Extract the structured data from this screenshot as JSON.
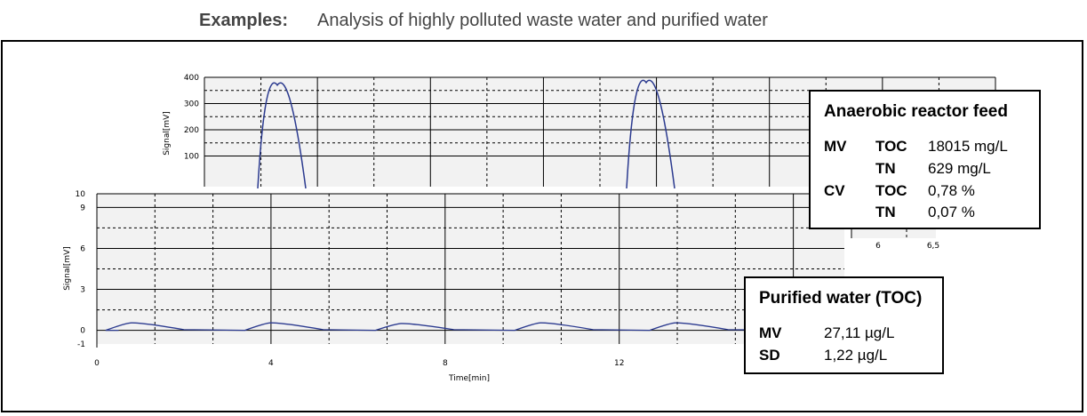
{
  "header": {
    "label": "Examples:",
    "text": "Analysis of highly polluted waste water and purified water"
  },
  "chart_data": [
    {
      "type": "line",
      "ylabel": "Signal[mV]",
      "yticks": [
        100,
        200,
        300,
        400
      ],
      "xticks_visible": [
        "6",
        "6,5"
      ],
      "line_color": "#2b3a8f",
      "series": [
        {
          "peaks": [
            {
              "x_rel": 0.4,
              "height": 370
            },
            {
              "x_rel": 0.62,
              "height": 380
            }
          ]
        }
      ]
    },
    {
      "type": "line",
      "xlabel": "Time[min]",
      "ylabel": "Signal[mV]",
      "xlim": [
        0,
        17
      ],
      "ylim": [
        -1,
        10
      ],
      "xticks": [
        0,
        4,
        8,
        12
      ],
      "yticks": [
        -1,
        0,
        3,
        6,
        9,
        10
      ],
      "line_color": "#2b3a8f",
      "series": [
        {
          "peaks": [
            {
              "x": 0.8,
              "height": 0.55
            },
            {
              "x": 4.0,
              "height": 0.55
            },
            {
              "x": 7.0,
              "height": 0.5
            },
            {
              "x": 10.2,
              "height": 0.55
            },
            {
              "x": 13.3,
              "height": 0.55
            }
          ]
        }
      ]
    }
  ],
  "box_anaerobic": {
    "title": "Anaerobic reactor feed",
    "rows": [
      {
        "a": "MV",
        "b": "TOC",
        "c": "18015 mg/L"
      },
      {
        "a": "",
        "b": "TN",
        "c": "629 mg/L"
      },
      {
        "a": "CV",
        "b": "TOC",
        "c": "0,78 %"
      },
      {
        "a": "",
        "b": "TN",
        "c": "0,07 %"
      }
    ]
  },
  "box_purified": {
    "title": "Purified water (TOC)",
    "rows": [
      {
        "a": "MV",
        "c": "27,11 µg/L"
      },
      {
        "a": "SD",
        "c": "1,22 µg/L"
      }
    ]
  }
}
